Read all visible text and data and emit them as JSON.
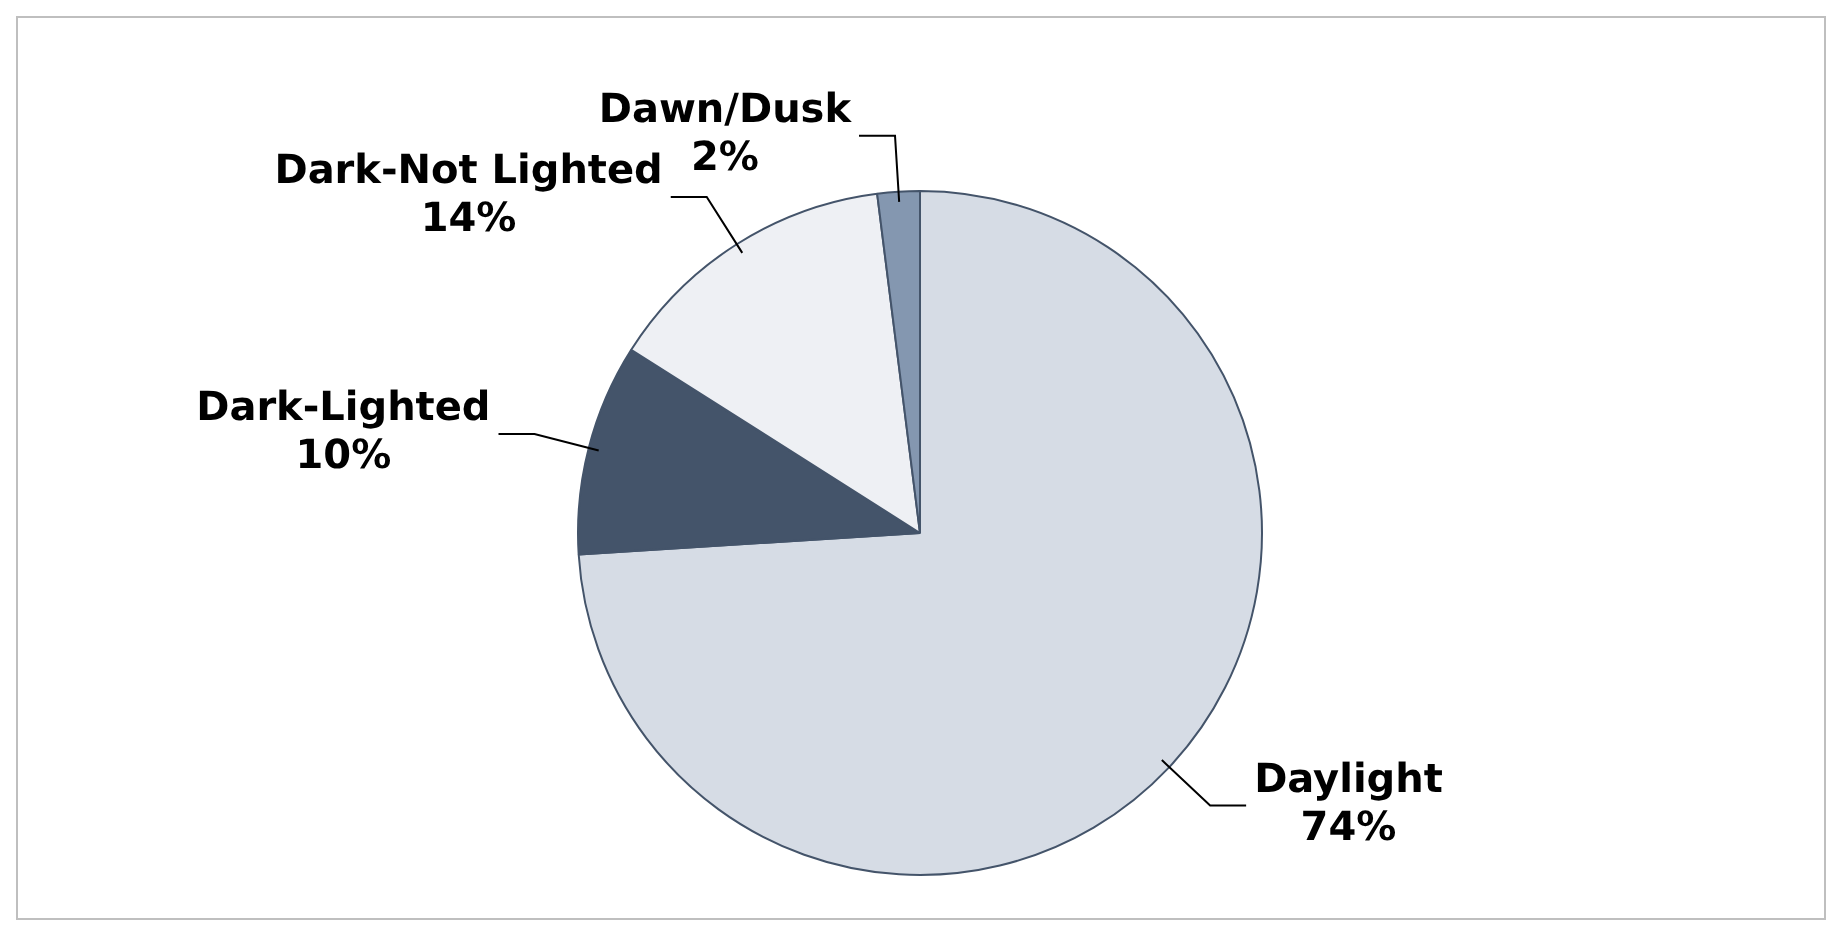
{
  "chart_data": {
    "type": "pie",
    "categories": [
      "Daylight",
      "Dark-Lighted",
      "Dark-Not Lighted",
      "Dawn/Dusk"
    ],
    "values": [
      74,
      10,
      14,
      2
    ],
    "value_labels": [
      "74%",
      "10%",
      "14%",
      "2%"
    ],
    "colors": [
      "#d6dce5",
      "#44546a",
      "#eef0f4",
      "#8497b0"
    ],
    "legend": false
  }
}
